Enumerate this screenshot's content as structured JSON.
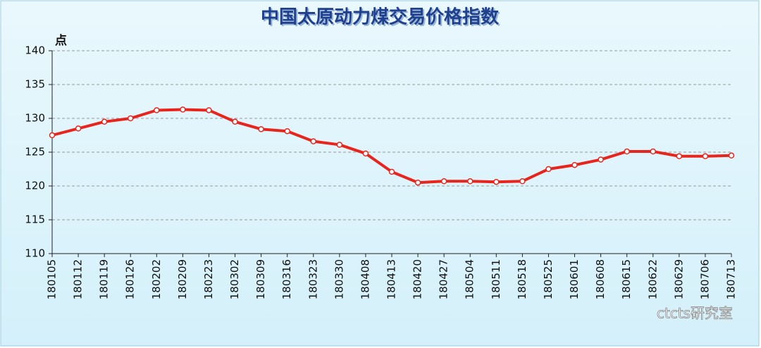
{
  "chart_data": {
    "type": "line",
    "title": "中国太原动力煤交易价格指数",
    "y_unit_label": "点",
    "categories": [
      "180105",
      "180112",
      "180119",
      "180126",
      "180202",
      "180209",
      "180223",
      "180302",
      "180309",
      "180316",
      "180323",
      "180330",
      "180408",
      "180413",
      "180420",
      "180427",
      "180504",
      "180511",
      "180518",
      "180525",
      "180601",
      "180608",
      "180615",
      "180622",
      "180629",
      "180706",
      "180713"
    ],
    "series": [
      {
        "name": "中国太原动力煤交易价格指数",
        "color": "#e8251c",
        "values": [
          127.5,
          128.5,
          129.5,
          130,
          131.2,
          131.3,
          131.2,
          129.5,
          128.4,
          128.1,
          126.6,
          126.1,
          124.8,
          122.1,
          120.5,
          120.7,
          120.7,
          120.6,
          120.7,
          122.5,
          123.1,
          123.9,
          125.1,
          125.1,
          124.4,
          124.4,
          124.5
        ]
      }
    ],
    "ylim": [
      110,
      140
    ],
    "yticks": [
      110,
      115,
      120,
      125,
      130,
      135,
      140
    ],
    "grid": true,
    "watermark": "ctcts研究室"
  }
}
